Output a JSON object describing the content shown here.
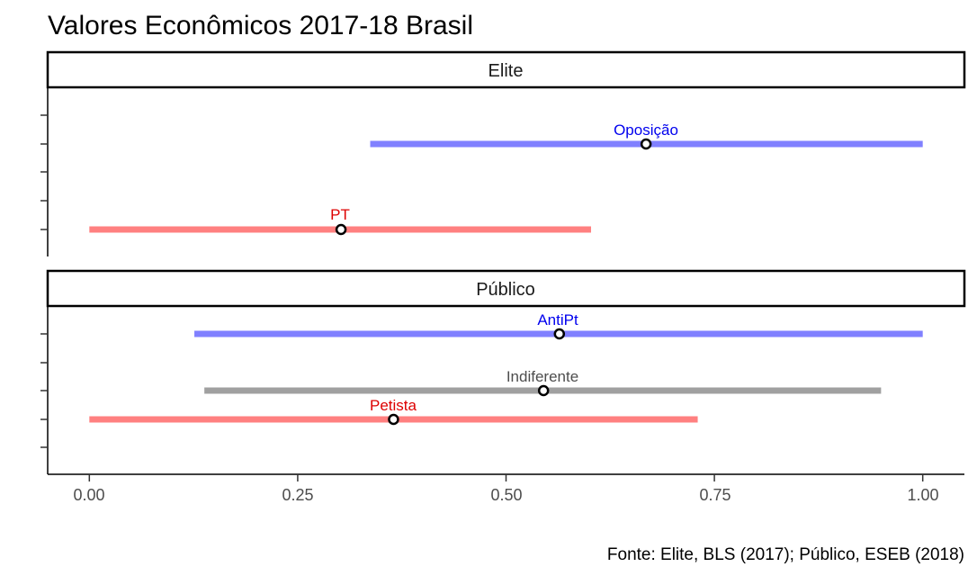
{
  "chart_data": {
    "type": "interval",
    "title": "Valores Econômicos 2017-18 Brasil",
    "caption": "Fonte: Elite, BLS (2017); Público, ESEB (2018)",
    "xlim": [
      -0.05,
      1.05
    ],
    "x_ticks": [
      0,
      0.25,
      0.5,
      0.75,
      1
    ],
    "x_tick_labels": [
      "0.00",
      "0.25",
      "0.50",
      "0.75",
      "1.00"
    ],
    "xlabel": "",
    "ylabel": "",
    "colors": {
      "blue_text": "#0000ee",
      "red_text": "#dd0000",
      "gray_text": "#4d4d4d",
      "blue_bar": "#8080ff",
      "red_bar": "#ff8080",
      "gray_bar": "#a0a0a0"
    },
    "panels": [
      {
        "name": "Elite",
        "groups": [
          {
            "label": "Oposição",
            "color": "blue",
            "mean": 0.668,
            "low": 0.337,
            "high": 1.0
          },
          {
            "label": "PT",
            "color": "red",
            "mean": 0.302,
            "low": 0.0,
            "high": 0.602
          }
        ]
      },
      {
        "name": "Público",
        "groups": [
          {
            "label": "AntiPt",
            "color": "blue",
            "mean": 0.564,
            "low": 0.126,
            "high": 1.0
          },
          {
            "label": "Indiferente",
            "color": "gray",
            "mean": 0.545,
            "low": 0.138,
            "high": 0.95
          },
          {
            "label": "Petista",
            "color": "red",
            "mean": 0.365,
            "low": 0.0,
            "high": 0.73
          }
        ]
      }
    ]
  }
}
